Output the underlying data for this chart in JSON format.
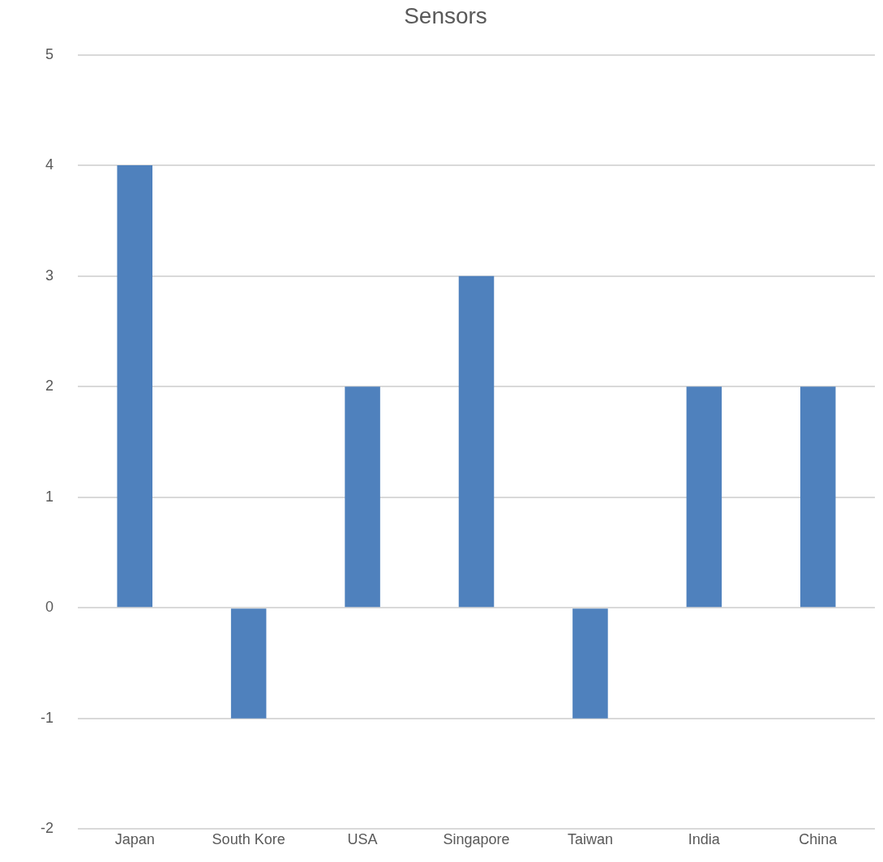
{
  "chart_data": {
    "type": "bar",
    "title": "Sensors",
    "categories": [
      "Japan",
      "South Kore",
      "USA",
      "Singapore",
      "Taiwan",
      "India",
      "China"
    ],
    "values": [
      4,
      -1,
      2,
      3,
      -1,
      2,
      2
    ],
    "color": "#4f81bd",
    "ylim": [
      -2,
      5
    ],
    "yticks": [
      -2,
      -1,
      0,
      1,
      2,
      3,
      4,
      5
    ],
    "grid": "y",
    "legend": false
  }
}
